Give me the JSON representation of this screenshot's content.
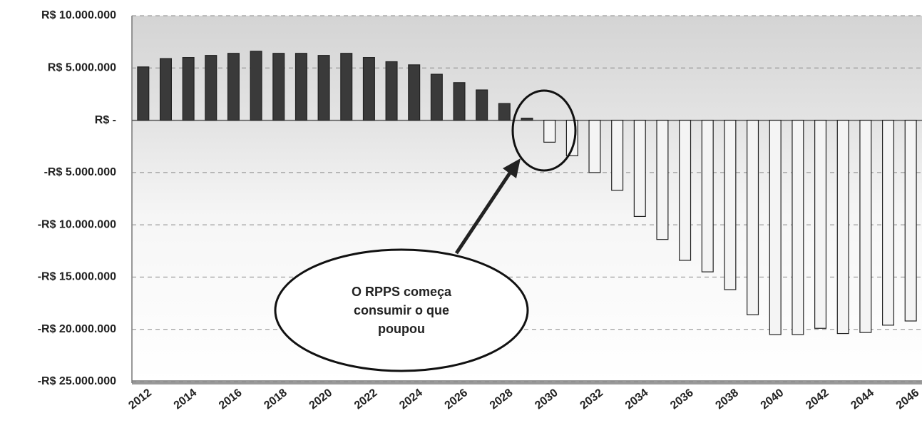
{
  "chart_data": {
    "type": "bar",
    "categories": [
      "2012",
      null,
      "2014",
      null,
      "2016",
      null,
      "2018",
      null,
      "2020",
      null,
      "2022",
      null,
      "2024",
      null,
      "2026",
      null,
      "2028",
      null,
      "2030",
      null,
      "2032",
      null,
      "2034",
      null,
      "2036",
      null,
      "2038",
      null,
      "2040",
      null,
      "2042",
      null,
      "2044",
      null,
      "2046"
    ],
    "values": [
      5100000,
      5900000,
      6000000,
      6200000,
      6400000,
      6600000,
      6400000,
      6400000,
      6200000,
      6400000,
      6000000,
      5600000,
      5300000,
      4400000,
      3600000,
      2900000,
      1600000,
      200000,
      -2100000,
      -3400000,
      -5000000,
      -6700000,
      -9200000,
      -11400000,
      -13400000,
      -14500000,
      -16200000,
      -18600000,
      -20500000,
      -20500000,
      -19900000,
      -20400000,
      -20300000,
      -19600000,
      -19200000
    ],
    "color_positive": "#3a3a3a",
    "color_negative": "#f4f4f4",
    "ylim": [
      -25000000,
      10000000
    ],
    "yticks": [
      {
        "value": -25000000,
        "label": "-R$ 25.000.000"
      },
      {
        "value": -20000000,
        "label": "-R$ 20.000.000"
      },
      {
        "value": -15000000,
        "label": "-R$ 15.000.000"
      },
      {
        "value": -10000000,
        "label": "-R$ 10.000.000"
      },
      {
        "value": -5000000,
        "label": "-R$ 5.000.000"
      },
      {
        "value": 0,
        "label": "R$ -"
      },
      {
        "value": 5000000,
        "label": "R$ 5.000.000"
      },
      {
        "value": 10000000,
        "label": "R$ 10.000.000"
      }
    ],
    "grid": true,
    "annotation": {
      "lines": [
        "O RPPS começa",
        "consumir o que",
        "poupou"
      ]
    }
  }
}
